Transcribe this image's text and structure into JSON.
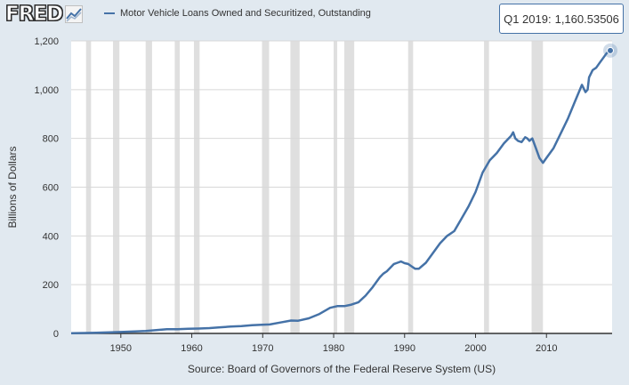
{
  "header": {
    "logo_text": "FRED",
    "logo_icon": "trend-line-icon",
    "legend_label": "Motor Vehicle Loans Owned and Securitized, Outstanding",
    "legend_color": "#4572a7"
  },
  "tooltip": {
    "label": "Q1 2019:",
    "value": "1,160.53506"
  },
  "chart_data": {
    "type": "line",
    "title": "",
    "ylabel": "Billions of Dollars",
    "xlabel": "",
    "source_note": "Source: Board of Governors of the Federal Reserve System (US)",
    "xlim": [
      1943,
      2019.25
    ],
    "ylim": [
      0,
      1200
    ],
    "x_ticks": [
      1950,
      1960,
      1970,
      1980,
      1990,
      2000,
      2010
    ],
    "y_ticks": [
      0,
      200,
      400,
      600,
      800,
      1000,
      1200
    ],
    "y_tick_labels": [
      "0",
      "200",
      "400",
      "600",
      "800",
      "1,000",
      "1,200"
    ],
    "grid": "horizontal",
    "colors": {
      "line": "#4572a7",
      "recession": "#dfdfdf",
      "background": "#ffffff",
      "page": "#e1e9f0"
    },
    "recessions": [
      [
        1945.1,
        1945.8
      ],
      [
        1948.9,
        1949.8
      ],
      [
        1953.5,
        1954.4
      ],
      [
        1957.6,
        1958.3
      ],
      [
        1960.3,
        1961.1
      ],
      [
        1969.9,
        1970.9
      ],
      [
        1973.9,
        1975.2
      ],
      [
        1980.0,
        1980.5
      ],
      [
        1981.5,
        1982.9
      ],
      [
        1990.5,
        1991.2
      ],
      [
        2001.2,
        2001.9
      ],
      [
        2007.9,
        2009.5
      ]
    ],
    "series": [
      {
        "name": "Motor Vehicle Loans Owned and Securitized, Outstanding",
        "x": [
          1943.0,
          1945.0,
          1946.5,
          1948.0,
          1950.0,
          1952.0,
          1953.5,
          1955.0,
          1956.5,
          1958.0,
          1959.5,
          1961.0,
          1962.5,
          1964.0,
          1965.5,
          1967.0,
          1968.5,
          1969.5,
          1971.0,
          1972.5,
          1974.0,
          1975.0,
          1976.5,
          1978.0,
          1979.5,
          1980.5,
          1981.5,
          1982.5,
          1983.5,
          1984.5,
          1985.5,
          1986.0,
          1986.5,
          1987.0,
          1987.5,
          1988.0,
          1988.5,
          1989.0,
          1989.5,
          1990.0,
          1990.5,
          1991.0,
          1991.5,
          1992.0,
          1993.0,
          1994.0,
          1995.0,
          1996.0,
          1997.0,
          1998.0,
          1999.0,
          2000.0,
          2001.0,
          2002.0,
          2003.0,
          2004.0,
          2005.0,
          2005.3,
          2005.6,
          2006.0,
          2006.5,
          2007.0,
          2007.3,
          2007.6,
          2008.0,
          2008.5,
          2009.0,
          2009.5,
          2010.0,
          2010.5,
          2011.0,
          2012.0,
          2013.0,
          2014.0,
          2015.0,
          2015.5,
          2015.8,
          2016.0,
          2016.5,
          2017.0,
          2017.5,
          2018.0,
          2018.5,
          2019.0
        ],
        "values": [
          1,
          2,
          3,
          4,
          6,
          8,
          10,
          14,
          17,
          17,
          19,
          20,
          22,
          25,
          28,
          30,
          34,
          35,
          37,
          45,
          53,
          52,
          62,
          80,
          105,
          112,
          112,
          118,
          128,
          155,
          190,
          210,
          230,
          245,
          255,
          270,
          285,
          290,
          295,
          288,
          285,
          275,
          265,
          265,
          290,
          330,
          370,
          400,
          420,
          470,
          520,
          580,
          660,
          710,
          740,
          780,
          810,
          825,
          800,
          790,
          785,
          805,
          800,
          790,
          800,
          760,
          720,
          700,
          720,
          740,
          760,
          820,
          880,
          950,
          1020,
          990,
          1000,
          1050,
          1080,
          1090,
          1110,
          1130,
          1150,
          1160.53506
        ]
      }
    ]
  }
}
